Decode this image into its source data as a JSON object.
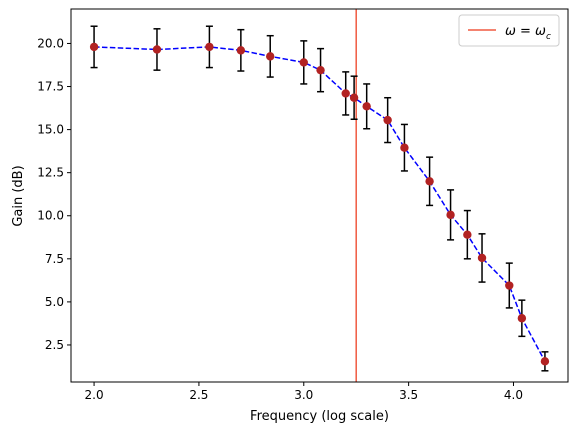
{
  "chart_data": {
    "type": "scatter",
    "title": "",
    "xlabel": "Frequency (log scale)",
    "ylabel": "Gain (dB)",
    "xlim": [
      1.89,
      4.26
    ],
    "ylim": [
      0.35,
      22.0
    ],
    "xscale": "linear",
    "grid": false,
    "legend_position": "top-right",
    "x_ticks": [
      2.0,
      2.5,
      3.0,
      3.5,
      4.0
    ],
    "x_tick_labels": [
      "2.0",
      "2.5",
      "3.0",
      "3.5",
      "4.0"
    ],
    "y_ticks": [
      2.5,
      5.0,
      7.5,
      10.0,
      12.5,
      15.0,
      17.5,
      20.0
    ],
    "y_tick_labels": [
      "2.5",
      "5.0",
      "7.5",
      "10.0",
      "12.5",
      "15.0",
      "17.5",
      "20.0"
    ],
    "series": [
      {
        "marker_color": "#b22222",
        "line_color": "#0000ff",
        "line_style": "dashed",
        "errorbar_color": "#000000",
        "x": [
          2.0,
          2.3,
          2.55,
          2.7,
          2.84,
          3.0,
          3.08,
          3.2,
          3.24,
          3.3,
          3.4,
          3.48,
          3.6,
          3.7,
          3.78,
          3.85,
          3.98,
          4.04,
          4.15
        ],
        "y": [
          19.8,
          19.65,
          19.8,
          19.6,
          19.25,
          18.9,
          18.45,
          17.1,
          16.85,
          16.35,
          15.55,
          13.95,
          12.0,
          10.05,
          8.9,
          7.55,
          5.95,
          4.05,
          1.55
        ],
        "yerr": [
          1.2,
          1.2,
          1.2,
          1.2,
          1.2,
          1.25,
          1.25,
          1.25,
          1.25,
          1.3,
          1.3,
          1.35,
          1.4,
          1.45,
          1.4,
          1.4,
          1.3,
          1.05,
          0.55
        ]
      },
      {
        "type": "vline",
        "x": 3.25,
        "color": "#f05a40",
        "name": "ω = ω_c"
      }
    ],
    "legend": {
      "label_main": "ω = ω",
      "label_sub": "c"
    }
  }
}
